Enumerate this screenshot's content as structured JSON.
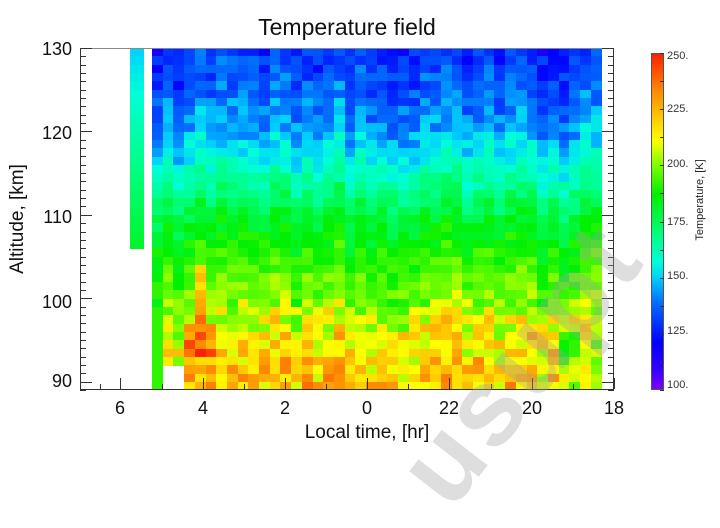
{
  "chart_data": {
    "type": "heatmap",
    "title": "Temperature field",
    "xlabel": "Local time, [hr]",
    "ylabel": "Altitude, [km]",
    "x_tick_labels": [
      "6",
      "4",
      "2",
      "0",
      "22",
      "20",
      "18"
    ],
    "y_tick_labels": [
      "90",
      "100",
      "110",
      "120",
      "130"
    ],
    "ylim": [
      89,
      130
    ],
    "x_direction": "local time decreasing left to right, wrapping from ~7 hr through 0 to 18 hr",
    "colorbar": {
      "label": "Temperature, [K]",
      "range": [
        100,
        250
      ],
      "tick_labels": [
        "100.",
        "125.",
        "150.",
        "175.",
        "200.",
        "225.",
        "250."
      ]
    },
    "description": "Temperatures ~125-150 K (blue) near 130 km, ~170-190 K (green) near 110 km, rising to ~210-245 K (yellow-red) near 90-97 km; hottest cells (~240-245 K) near local time 4 hr at ~94-96 km; narrow isolated column near 6 hr spans ~106-130 km (150-175 K)",
    "altitude_profile_mean_K": [
      {
        "alt": 130,
        "T": 128
      },
      {
        "alt": 125,
        "T": 135
      },
      {
        "alt": 120,
        "T": 145
      },
      {
        "alt": 115,
        "T": 160
      },
      {
        "alt": 110,
        "T": 178
      },
      {
        "alt": 105,
        "T": 190
      },
      {
        "alt": 100,
        "T": 200
      },
      {
        "alt": 95,
        "T": 215
      },
      {
        "alt": 90,
        "T": 222
      }
    ]
  },
  "watermark": "usupt"
}
